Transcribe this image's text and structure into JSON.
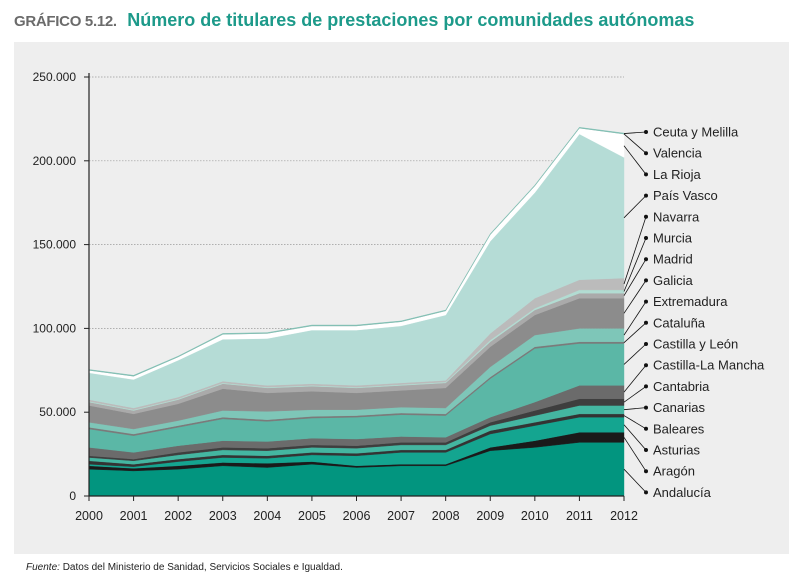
{
  "header": {
    "label": "GRÁFICO 5.12.",
    "title": "Número de titulares de prestaciones por comunidades autónomas"
  },
  "footer": {
    "source_label": "Fuente:",
    "source_text": " Datos del Ministerio de Sanidad, Servicios Sociales e Igualdad."
  },
  "colors": {
    "background": "#eeeeee",
    "title": "#1d9a8a",
    "grid": "#9a9a9a"
  },
  "chart_data": {
    "type": "area",
    "stacked": true,
    "title": "Número de titulares de prestaciones por comunidades autónomas",
    "xlabel": "",
    "ylabel": "",
    "x": [
      "2000",
      "2001",
      "2002",
      "2003",
      "2004",
      "2005",
      "2006",
      "2007",
      "2008",
      "2009",
      "2010",
      "2011",
      "2012"
    ],
    "ylim": [
      0,
      250000
    ],
    "yticks": [
      0,
      50000,
      100000,
      150000,
      200000,
      250000
    ],
    "ytick_labels": [
      "0",
      "50.000",
      "100.000",
      "150.000",
      "200.000",
      "250.000"
    ],
    "grid": true,
    "legend_position": "right",
    "series": [
      {
        "name": "Andalucía",
        "color": "#02957f",
        "values": [
          16000,
          15000,
          16000,
          18000,
          17000,
          19000,
          17000,
          18000,
          18000,
          27000,
          29000,
          32000,
          32000
        ]
      },
      {
        "name": "Aragón",
        "color": "#1a1a1a",
        "values": [
          2000,
          1500,
          2000,
          2000,
          2500,
          1500,
          1000,
          1000,
          1000,
          2000,
          4000,
          6000,
          6000
        ]
      },
      {
        "name": "Asturias",
        "color": "#14a590",
        "values": [
          1000,
          1000,
          2500,
          3000,
          3000,
          4000,
          6000,
          7000,
          7000,
          8000,
          9000,
          9000,
          9000
        ]
      },
      {
        "name": "Baleares",
        "color": "#333333",
        "values": [
          2000,
          1500,
          1500,
          1500,
          1500,
          1500,
          1500,
          1500,
          1500,
          2000,
          2000,
          2000,
          2000
        ]
      },
      {
        "name": "Canarias",
        "color": "#44b6a1",
        "values": [
          2000,
          2000,
          2500,
          3000,
          3000,
          3000,
          3000,
          3000,
          3000,
          3000,
          4000,
          5000,
          5000
        ]
      },
      {
        "name": "Cantabria",
        "color": "#3e3e3e",
        "values": [
          1000,
          1000,
          1500,
          1500,
          1500,
          1500,
          1500,
          1500,
          1500,
          2000,
          3000,
          4000,
          4000
        ]
      },
      {
        "name": "Castilla-La Mancha",
        "color": "#6b6b6b",
        "values": [
          5000,
          4000,
          4000,
          4000,
          4000,
          4000,
          4000,
          3500,
          3000,
          3000,
          5000,
          8000,
          8000
        ]
      },
      {
        "name": "Castilla y León",
        "color": "#5bb7a6",
        "values": [
          11000,
          10000,
          11000,
          13000,
          12000,
          12000,
          13000,
          13000,
          13000,
          23000,
          32000,
          25000,
          25000
        ]
      },
      {
        "name": "Cataluña",
        "color": "#7a7a7a",
        "values": [
          1000,
          1000,
          1000,
          1000,
          1000,
          1000,
          1000,
          1000,
          1000,
          1000,
          1000,
          1000,
          1000
        ]
      },
      {
        "name": "Extremadura",
        "color": "#7ec6b8",
        "values": [
          3000,
          3000,
          3000,
          4000,
          5000,
          4000,
          3500,
          3500,
          3500,
          6000,
          7000,
          8000,
          8000
        ]
      },
      {
        "name": "Galicia",
        "color": "#8c8c8c",
        "values": [
          10000,
          9000,
          10000,
          13000,
          11000,
          11000,
          10000,
          10000,
          12000,
          12000,
          12000,
          18000,
          18000
        ]
      },
      {
        "name": "Madrid",
        "color": "#aaaaaa",
        "values": [
          2000,
          2000,
          2500,
          3000,
          3000,
          3000,
          3000,
          3000,
          3000,
          3000,
          3000,
          3000,
          3000
        ]
      },
      {
        "name": "Murcia",
        "color": "#b2dcd2",
        "values": [
          500,
          500,
          500,
          500,
          500,
          500,
          500,
          500,
          500,
          1000,
          1000,
          2000,
          2000
        ]
      },
      {
        "name": "Navarra",
        "color": "#bbbbbb",
        "values": [
          1000,
          1000,
          1000,
          1000,
          1000,
          1000,
          1000,
          1000,
          1000,
          4000,
          6000,
          6000,
          7000
        ]
      },
      {
        "name": "País Vasco",
        "color": "#b5dcd6",
        "values": [
          16000,
          17000,
          22000,
          25000,
          28000,
          32000,
          33000,
          34000,
          39000,
          55000,
          63000,
          87000,
          72000
        ]
      },
      {
        "name": "La Rioja",
        "color": "#ffffff",
        "values": [
          1500,
          2000,
          2000,
          3000,
          3000,
          2500,
          2500,
          2500,
          2500,
          4000,
          4000,
          3500,
          14000
        ]
      },
      {
        "name": "Valencia",
        "color": "#c9c9c9",
        "values": [
          0,
          0,
          0,
          0,
          0,
          0,
          0,
          0,
          0,
          0,
          0,
          0,
          0
        ]
      },
      {
        "name": "Ceuta y Melilla",
        "color": "#7fbfb3",
        "values": [
          500,
          500,
          500,
          500,
          500,
          500,
          500,
          500,
          500,
          500,
          500,
          500,
          500
        ]
      }
    ]
  }
}
